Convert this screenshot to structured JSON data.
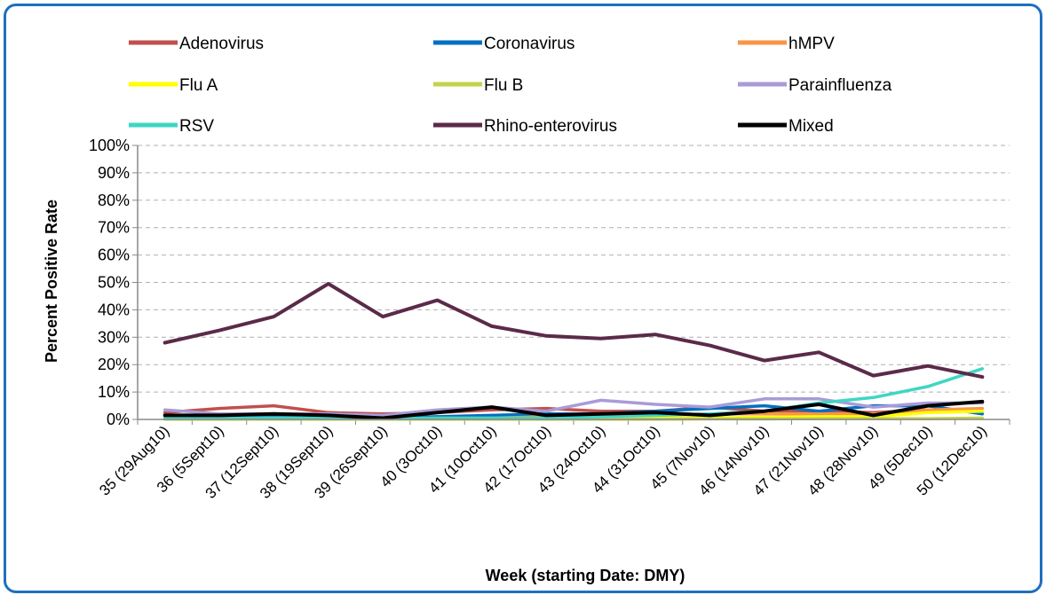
{
  "chart_data": {
    "type": "line",
    "xlabel": "Week (starting Date: DMY)",
    "ylabel": "Percent Positive Rate",
    "ylim": [
      0,
      100
    ],
    "yticks": [
      "0%",
      "10%",
      "20%",
      "30%",
      "40%",
      "50%",
      "60%",
      "70%",
      "80%",
      "90%",
      "100%"
    ],
    "grid": "horizontal dashed",
    "legend_position": "top",
    "categories": [
      "35 (29Aug10)",
      "36 (5Sept10)",
      "37 (12Sept10)",
      "38 (19Sept10)",
      "39 (26Sept10)",
      "40 (3Oct10)",
      "41 (10Oct10)",
      "42 (17Oct10)",
      "43 (24Oct10)",
      "44 (31Oct10)",
      "45 (7Nov10)",
      "46 (14Nov10)",
      "47 (21Nov10)",
      "48 (28Nov10)",
      "49 (5Dec10)",
      "50 (12Dec10)"
    ],
    "series": [
      {
        "name": "Adenovirus",
        "color": "#c0504d",
        "values": [
          2.5,
          4,
          5,
          2.5,
          2,
          2.5,
          3.5,
          4,
          3,
          3,
          4.5,
          3,
          3,
          2.5,
          3.5,
          3
        ]
      },
      {
        "name": "Coronavirus",
        "color": "#0070c0",
        "values": [
          1.5,
          1.5,
          1.5,
          1,
          0.5,
          1,
          1.5,
          2,
          2,
          3,
          4,
          5,
          3,
          5,
          5,
          2
        ]
      },
      {
        "name": "hMPV",
        "color": "#f79646",
        "values": [
          0.5,
          0.5,
          0.5,
          0.5,
          0.3,
          0.5,
          0.5,
          1,
          1,
          1.5,
          2,
          2,
          2,
          2,
          3.5,
          4
        ]
      },
      {
        "name": "Flu A",
        "color": "#ffff00",
        "values": [
          0.2,
          0.2,
          0.2,
          0.2,
          0.2,
          0.2,
          0.2,
          0.2,
          0.3,
          0.5,
          0.5,
          0.8,
          1,
          1,
          2.5,
          3
        ]
      },
      {
        "name": "Flu B",
        "color": "#c4d34b",
        "values": [
          0.1,
          0.1,
          0.1,
          0.1,
          0.1,
          0.1,
          0.1,
          0.1,
          0.1,
          0.1,
          0.2,
          0.2,
          0.3,
          0.3,
          0.3,
          0.5
        ]
      },
      {
        "name": "Parainfluenza",
        "color": "#a99bd8",
        "values": [
          3.5,
          2,
          2,
          2,
          1.5,
          3.5,
          4.5,
          3,
          7,
          5.5,
          4.5,
          7.5,
          7.5,
          4.5,
          6,
          6
        ]
      },
      {
        "name": "RSV",
        "color": "#3fd6c4",
        "values": [
          0.5,
          0.5,
          0.5,
          0.5,
          0.3,
          0.5,
          0.5,
          0.5,
          1,
          1.5,
          2,
          3,
          6,
          8,
          12,
          18.5
        ]
      },
      {
        "name": "Rhino-enterovirus",
        "color": "#5b2a49",
        "values": [
          28,
          32.5,
          37.5,
          49.5,
          37.5,
          43.5,
          34,
          30.5,
          29.5,
          31,
          27,
          21.5,
          24.5,
          16,
          19.5,
          15.5
        ]
      },
      {
        "name": "Mixed",
        "color": "#000000",
        "values": [
          1.5,
          1.5,
          2,
          1.5,
          0.5,
          2.5,
          4.5,
          1.5,
          2,
          2.5,
          1.5,
          3,
          5.5,
          1.5,
          5,
          6.5
        ]
      }
    ]
  }
}
